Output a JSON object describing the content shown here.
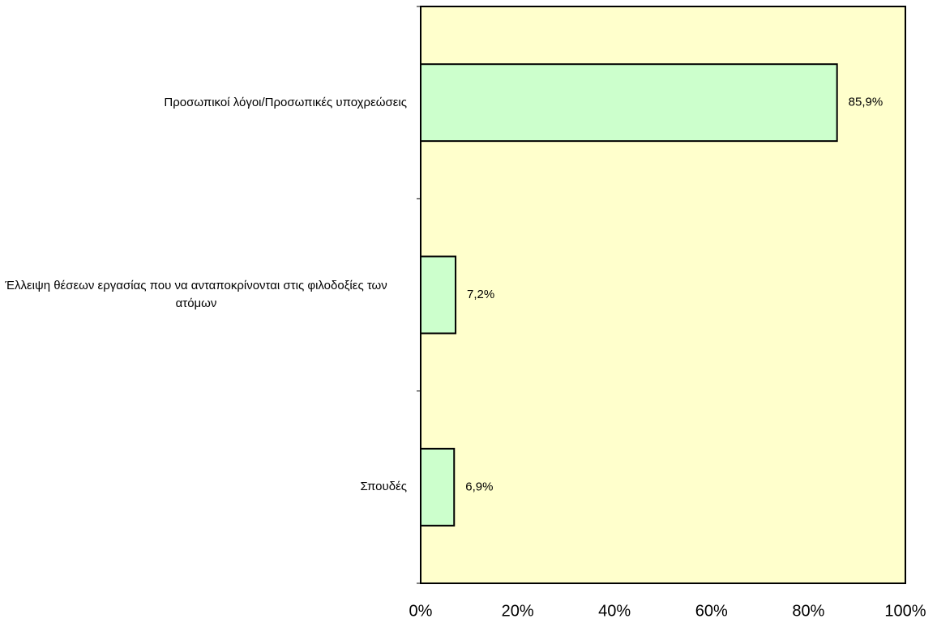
{
  "chart_data": {
    "type": "bar",
    "orientation": "horizontal",
    "categories": [
      "Προσωπικοί λόγοι/Προσωπικές υποχρεώσεις",
      "Έλλειψη θέσεων εργασίας που να ανταποκρίνονται στις φιλοδοξίες των ατόμων",
      "Σπουδές"
    ],
    "values": [
      85.9,
      7.2,
      6.9
    ],
    "value_labels": [
      "85,9%",
      "7,2%",
      "6,9%"
    ],
    "color": "#ccffcc",
    "background": "#ffffcc",
    "xlim": [
      0,
      100
    ],
    "xticks": [
      {
        "value": 0,
        "label": "0%"
      },
      {
        "value": 20,
        "label": "20%"
      },
      {
        "value": 40,
        "label": "40%"
      },
      {
        "value": 60,
        "label": "60%"
      },
      {
        "value": 80,
        "label": "80%"
      },
      {
        "value": 100,
        "label": "100%"
      }
    ],
    "grid": false
  }
}
